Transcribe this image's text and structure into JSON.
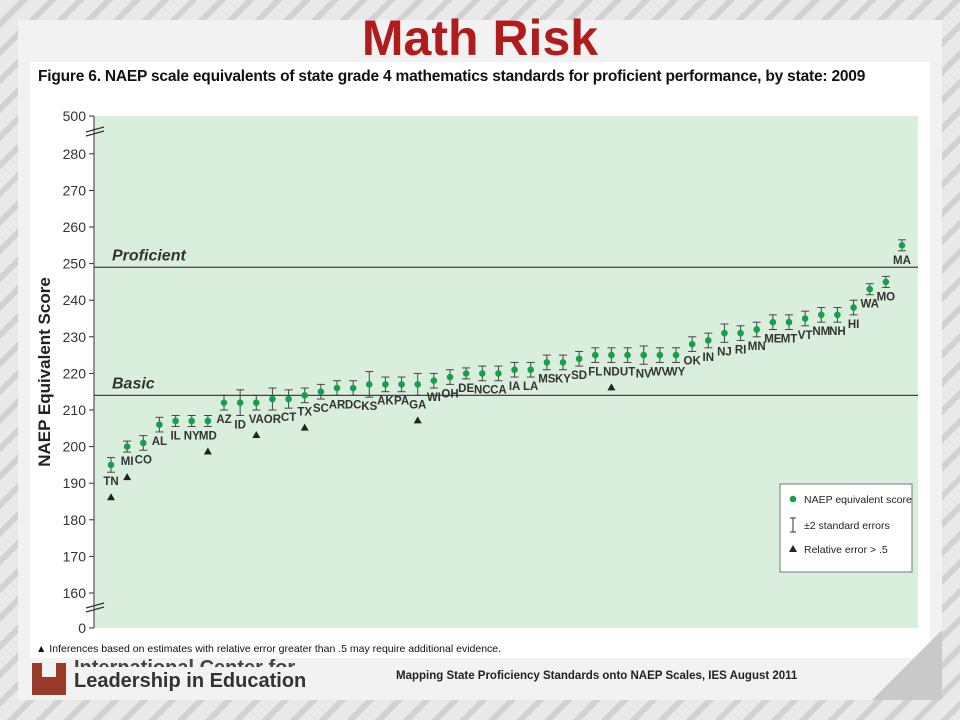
{
  "title": "Math Risk",
  "figure_caption": "Figure 6.   NAEP scale equivalents of state grade 4 mathematics standards for proficient performance, by state: 2009",
  "footnote": "▲ Inferences based on estimates with relative error greater than .5 may require additional evidence.",
  "logo": {
    "line1": "International Center for",
    "line2": "Leadership in Education"
  },
  "source": "Mapping State Proficiency Standards onto NAEP Scales, IES August 2011",
  "colors": {
    "plot_bg": "#daeedd",
    "point": "#15a04a",
    "title": "#b01c1c",
    "line": "#444444"
  },
  "chart_data": {
    "type": "scatter",
    "title": "Figure 6.   NAEP scale equivalents of state grade 4 mathematics standards for proficient performance, by state: 2009",
    "ylabel": "NAEP Equivalent Score",
    "ylim": [
      155,
      285
    ],
    "y_axis_break": {
      "bottom": 0,
      "top": 500
    },
    "yticks": [
      "0",
      "160",
      "170",
      "180",
      "190",
      "200",
      "210",
      "220",
      "230",
      "240",
      "250",
      "260",
      "270",
      "280",
      "500"
    ],
    "reference_lines": [
      {
        "label": "Proficient",
        "value": 249
      },
      {
        "label": "Basic",
        "value": 214
      }
    ],
    "legend": {
      "position": "bottom-right",
      "items": [
        "NAEP equivalent score",
        "±2 standard errors",
        "Relative error > .5"
      ]
    },
    "points": [
      {
        "state": "TN",
        "value": 195,
        "se": 2,
        "flag": true
      },
      {
        "state": "MI",
        "value": 200,
        "se": 1.5,
        "flag": true
      },
      {
        "state": "CO",
        "value": 201,
        "se": 2,
        "flag": false
      },
      {
        "state": "AL",
        "value": 206,
        "se": 2,
        "flag": false
      },
      {
        "state": "IL",
        "value": 207,
        "se": 1.5,
        "flag": false
      },
      {
        "state": "NY",
        "value": 207,
        "se": 1.5,
        "flag": false
      },
      {
        "state": "MD",
        "value": 207,
        "se": 1.5,
        "flag": true
      },
      {
        "state": "AZ",
        "value": 212,
        "se": 2,
        "flag": false
      },
      {
        "state": "ID",
        "value": 212,
        "se": 3.5,
        "flag": false
      },
      {
        "state": "VA",
        "value": 212,
        "se": 2,
        "flag": true
      },
      {
        "state": "OR",
        "value": 213,
        "se": 3,
        "flag": false
      },
      {
        "state": "CT",
        "value": 213,
        "se": 2.5,
        "flag": false
      },
      {
        "state": "TX",
        "value": 214,
        "se": 2,
        "flag": true
      },
      {
        "state": "SC",
        "value": 215,
        "se": 2,
        "flag": false
      },
      {
        "state": "AR",
        "value": 216,
        "se": 2,
        "flag": false
      },
      {
        "state": "DC",
        "value": 216,
        "se": 2,
        "flag": false
      },
      {
        "state": "KS",
        "value": 217,
        "se": 3.5,
        "flag": false
      },
      {
        "state": "AK",
        "value": 217,
        "se": 2,
        "flag": false
      },
      {
        "state": "PA",
        "value": 217,
        "se": 2,
        "flag": false
      },
      {
        "state": "GA",
        "value": 217,
        "se": 3,
        "flag": true
      },
      {
        "state": "WI",
        "value": 218,
        "se": 2,
        "flag": false
      },
      {
        "state": "OH",
        "value": 219,
        "se": 2,
        "flag": false
      },
      {
        "state": "DE",
        "value": 220,
        "se": 1.5,
        "flag": false
      },
      {
        "state": "NC",
        "value": 220,
        "se": 2,
        "flag": false
      },
      {
        "state": "CA",
        "value": 220,
        "se": 2,
        "flag": false
      },
      {
        "state": "IA",
        "value": 221,
        "se": 2,
        "flag": false
      },
      {
        "state": "LA",
        "value": 221,
        "se": 2,
        "flag": false
      },
      {
        "state": "MS",
        "value": 223,
        "se": 2,
        "flag": false
      },
      {
        "state": "KY",
        "value": 223,
        "se": 2,
        "flag": false
      },
      {
        "state": "SD",
        "value": 224,
        "se": 2,
        "flag": false
      },
      {
        "state": "FL",
        "value": 225,
        "se": 2,
        "flag": false
      },
      {
        "state": "ND",
        "value": 225,
        "se": 2,
        "flag": true
      },
      {
        "state": "UT",
        "value": 225,
        "se": 2,
        "flag": false
      },
      {
        "state": "NV",
        "value": 225,
        "se": 2.5,
        "flag": false
      },
      {
        "state": "WV",
        "value": 225,
        "se": 2,
        "flag": false
      },
      {
        "state": "WY",
        "value": 225,
        "se": 2,
        "flag": false
      },
      {
        "state": "OK",
        "value": 228,
        "se": 2,
        "flag": false
      },
      {
        "state": "IN",
        "value": 229,
        "se": 2,
        "flag": false
      },
      {
        "state": "NJ",
        "value": 231,
        "se": 2.5,
        "flag": false
      },
      {
        "state": "RI",
        "value": 231,
        "se": 2,
        "flag": false
      },
      {
        "state": "MN",
        "value": 232,
        "se": 2,
        "flag": false
      },
      {
        "state": "ME",
        "value": 234,
        "se": 2,
        "flag": false
      },
      {
        "state": "MT",
        "value": 234,
        "se": 2,
        "flag": false
      },
      {
        "state": "VT",
        "value": 235,
        "se": 2,
        "flag": false
      },
      {
        "state": "NM",
        "value": 236,
        "se": 2,
        "flag": false
      },
      {
        "state": "NH",
        "value": 236,
        "se": 2,
        "flag": false
      },
      {
        "state": "HI",
        "value": 238,
        "se": 2,
        "flag": false
      },
      {
        "state": "WA",
        "value": 243,
        "se": 1.5,
        "flag": false
      },
      {
        "state": "MO",
        "value": 245,
        "se": 1.5,
        "flag": false
      },
      {
        "state": "MA",
        "value": 255,
        "se": 1.5,
        "flag": false
      }
    ]
  }
}
